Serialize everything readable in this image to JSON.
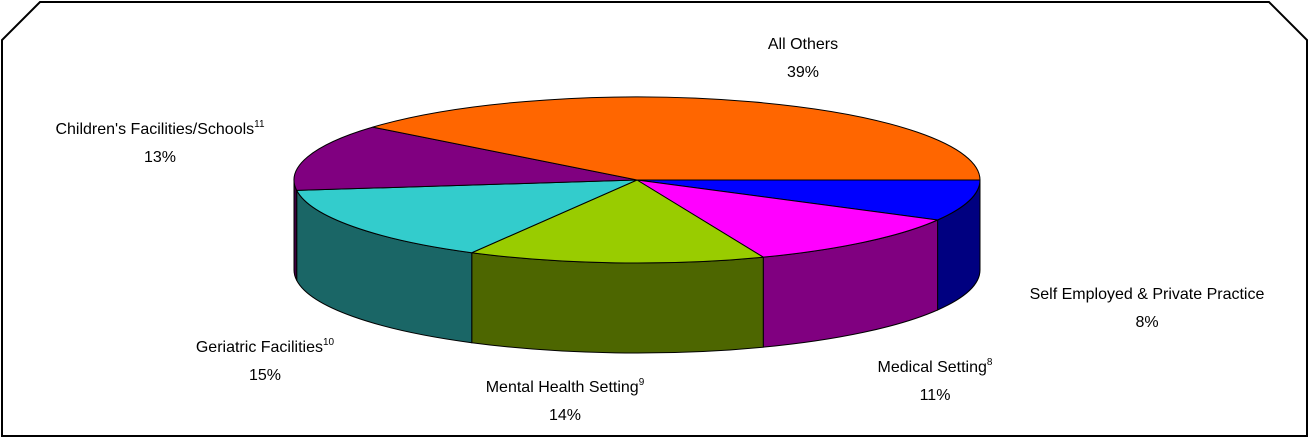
{
  "chart_data": {
    "type": "pie3d",
    "categories": [
      "Self Employed & Private Practice",
      "Medical Setting",
      "Mental Health Setting",
      "Geriatric Facilities",
      "Children's Facilities/Schools",
      "All Others"
    ],
    "notes": [
      null,
      "8",
      "9",
      "10",
      "11",
      null
    ],
    "values": [
      8,
      11,
      14,
      15,
      13,
      39
    ],
    "value_labels": [
      "8%",
      "11%",
      "14%",
      "15%",
      "13%",
      "39%"
    ],
    "colors": [
      "#0000FF",
      "#FF00FF",
      "#99CC00",
      "#33CCCC",
      "#800080",
      "#FF6600"
    ]
  }
}
